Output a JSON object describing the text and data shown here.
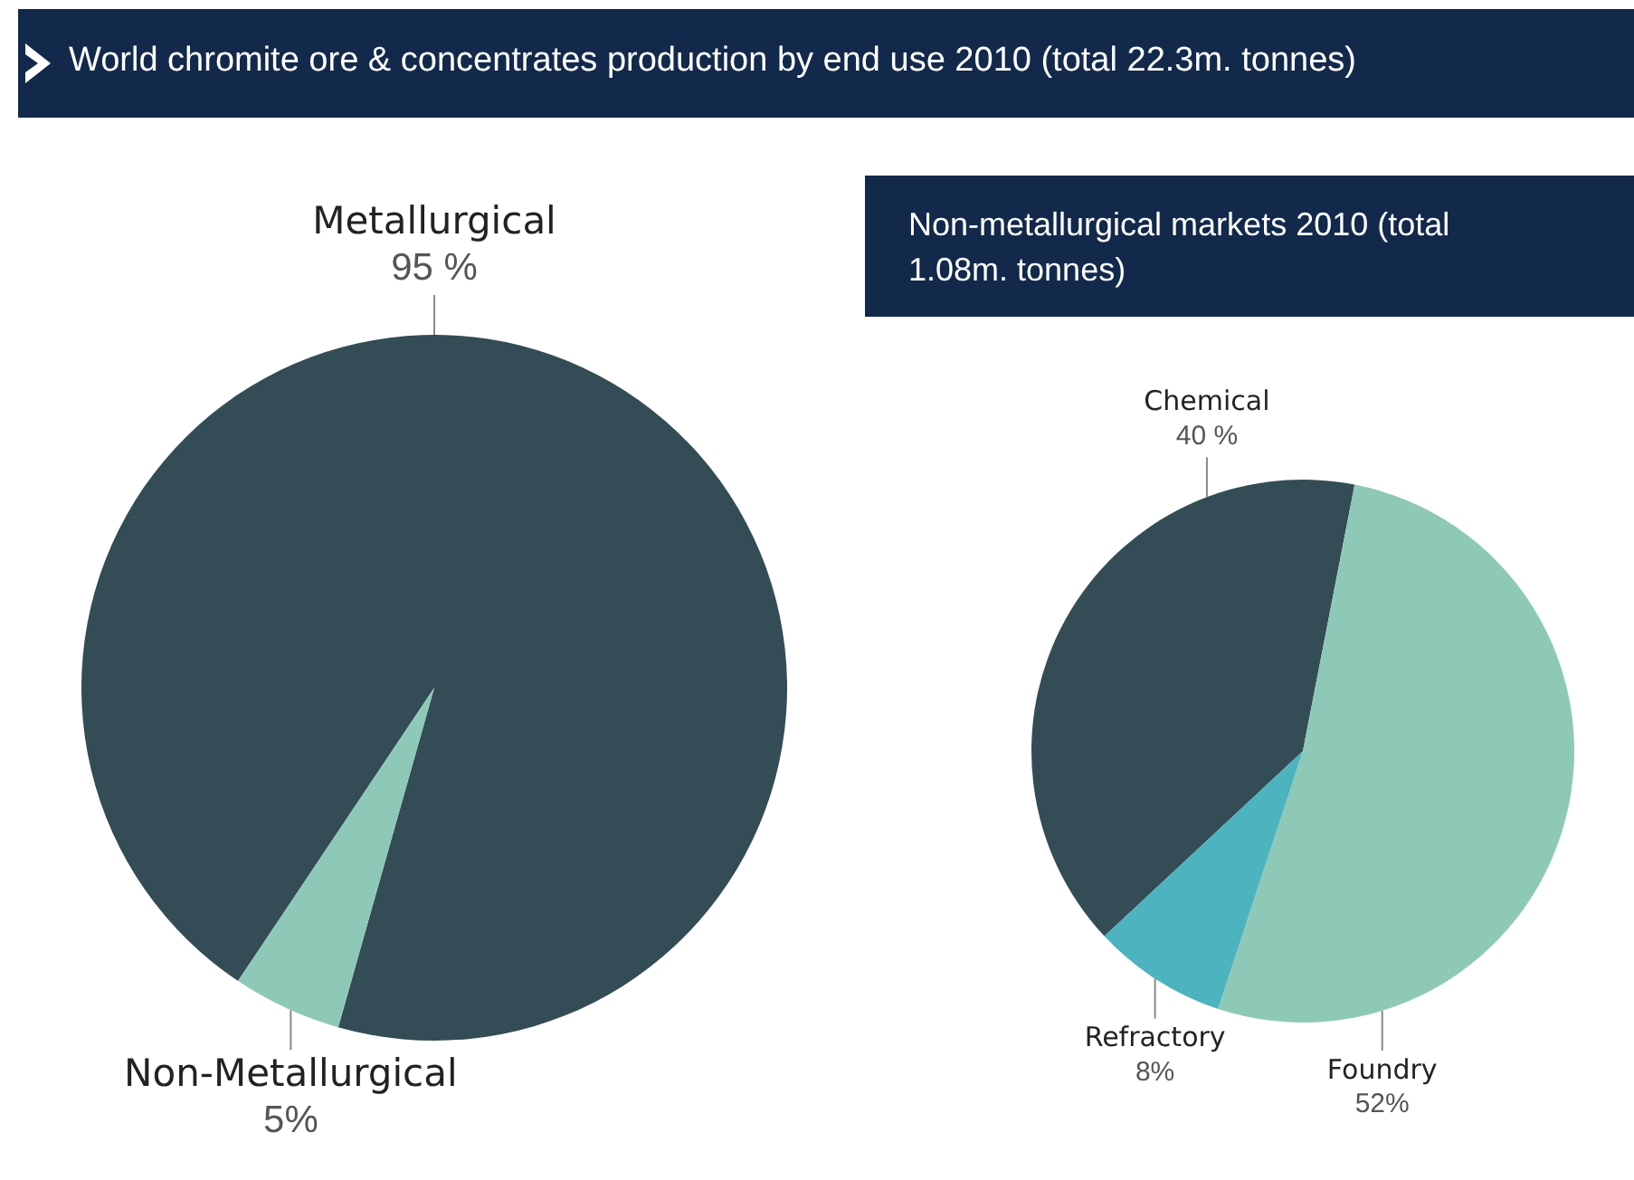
{
  "chart_data": [
    {
      "type": "pie",
      "title": "World chromite ore & concentrates production by end use 2010 (total 22.3m. tonnes)",
      "categories": [
        "Metallurgical",
        "Non-Metallurgical"
      ],
      "values": [
        95,
        5
      ],
      "colors": [
        "#344c55",
        "#8ec9b8"
      ],
      "value_labels": [
        "95 %",
        "5%"
      ],
      "legend": false
    },
    {
      "type": "pie",
      "title": "Non-metallurgical markets 2010 (total 1.08m. tonnes)",
      "categories": [
        "Chemical",
        "Foundry",
        "Refractory"
      ],
      "values": [
        40,
        52,
        8
      ],
      "colors": [
        "#344c55",
        "#8ec9b8",
        "#4db3bf"
      ],
      "value_labels": [
        "40 %",
        "52%",
        "8%"
      ],
      "legend": false
    }
  ]
}
